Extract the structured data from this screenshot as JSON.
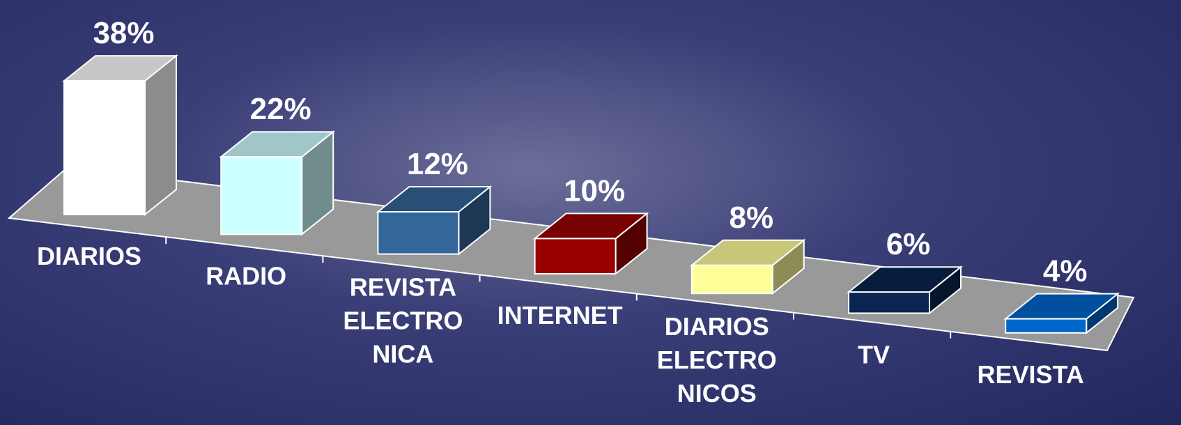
{
  "chart_data": {
    "type": "bar3d",
    "categories": [
      "DIARIOS",
      "RADIO",
      "REVISTA ELECTRO NICA",
      "INTERNET",
      "DIARIOS ELECTRO NICOS",
      "TV",
      "REVISTA"
    ],
    "values": [
      38,
      22,
      12,
      10,
      8,
      6,
      4
    ],
    "value_labels": [
      "38%",
      "22%",
      "12%",
      "10%",
      "8%",
      "6%",
      "4%"
    ],
    "colors": [
      "#ffffff",
      "#ccffff",
      "#336699",
      "#990000",
      "#ffff99",
      "#0a2550",
      "#0066cc"
    ]
  }
}
